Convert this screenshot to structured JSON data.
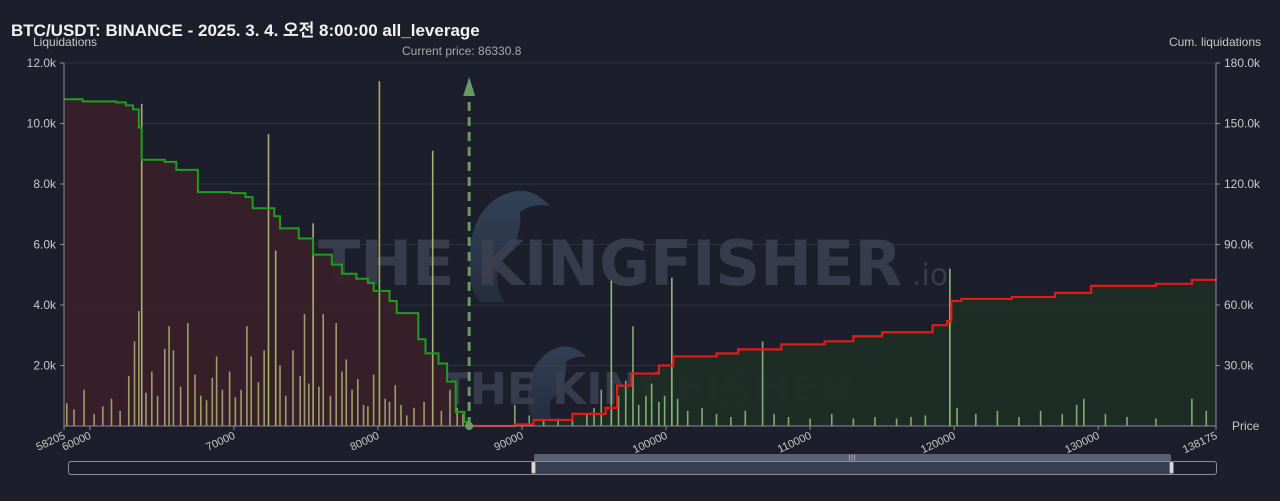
{
  "title": "BTC/USDT: BINANCE - 2025. 3. 4. 오전 8:00:00 all_leverage",
  "colors": {
    "background": "#1c1e2b",
    "short_cum_line": "#e31a1a",
    "long_cum_line": "#1f9d1f",
    "long_fill": "#3a1f28",
    "short_fill": "#1e2e26",
    "bar_long": "#b7bd7a",
    "bar_short": "#9fc98a",
    "current_price": "#6a9a63"
  },
  "watermark": {
    "text_main": "THE KINGFISHER",
    "text_suffix": ".io"
  },
  "chart_data": {
    "type": "bar",
    "title": "BTC/USDT: BINANCE - 2025. 3. 4. 오전 8:00:00 all_leverage",
    "xlabel": "Price",
    "ylabel": "Liquidations",
    "y2label": "Cum. liquidations",
    "xlim": [
      58205,
      138175
    ],
    "ylim": [
      0,
      12000
    ],
    "y2lim": [
      0,
      180000
    ],
    "x_ticks": [
      "58205",
      "60000",
      "70000",
      "80000",
      "90000",
      "100000",
      "110000",
      "120000",
      "130000",
      "138175"
    ],
    "y_ticks": [
      "2.0k",
      "4.0k",
      "6.0k",
      "8.0k",
      "10.0k",
      "12.0k"
    ],
    "y2_ticks": [
      "30.0k",
      "60.0k",
      "90.0k",
      "120.0k",
      "150.0k",
      "180.0k"
    ],
    "grid": true,
    "current_price": {
      "value": 86330.8,
      "label": "Current price: 86330.8"
    },
    "cumulative_long": [
      [
        58205,
        162000
      ],
      [
        59500,
        161000
      ],
      [
        61800,
        160500
      ],
      [
        62500,
        159000
      ],
      [
        63000,
        157000
      ],
      [
        63400,
        148000
      ],
      [
        63600,
        132000
      ],
      [
        65200,
        131000
      ],
      [
        66000,
        127000
      ],
      [
        67500,
        116000
      ],
      [
        69800,
        115500
      ],
      [
        70800,
        113500
      ],
      [
        71300,
        108000
      ],
      [
        72800,
        104000
      ],
      [
        73200,
        98000
      ],
      [
        74500,
        93000
      ],
      [
        75500,
        85000
      ],
      [
        76800,
        80000
      ],
      [
        77500,
        75500
      ],
      [
        78500,
        73000
      ],
      [
        79300,
        71000
      ],
      [
        79700,
        67000
      ],
      [
        80800,
        62000
      ],
      [
        81300,
        56000
      ],
      [
        82800,
        43000
      ],
      [
        83300,
        36000
      ],
      [
        84200,
        31000
      ],
      [
        84800,
        22000
      ],
      [
        85400,
        7000
      ],
      [
        86000,
        2000
      ],
      [
        86330,
        0
      ]
    ],
    "cumulative_short": [
      [
        86330,
        0
      ],
      [
        89500,
        800
      ],
      [
        90800,
        3000
      ],
      [
        93500,
        6000
      ],
      [
        95800,
        9000
      ],
      [
        96600,
        20000
      ],
      [
        97600,
        26000
      ],
      [
        99500,
        30000
      ],
      [
        100500,
        34500
      ],
      [
        103500,
        36000
      ],
      [
        105000,
        38000
      ],
      [
        108000,
        40500
      ],
      [
        111000,
        42000
      ],
      [
        113000,
        44500
      ],
      [
        115000,
        46500
      ],
      [
        118500,
        50000
      ],
      [
        119500,
        52000
      ],
      [
        119800,
        62000
      ],
      [
        120500,
        63000
      ],
      [
        124000,
        64000
      ],
      [
        127000,
        66000
      ],
      [
        129500,
        69500
      ],
      [
        134000,
        70500
      ],
      [
        136500,
        72500
      ],
      [
        138175,
        73000
      ]
    ],
    "liquidation_bars": [
      [
        58400,
        750
      ],
      [
        58900,
        550
      ],
      [
        59600,
        1200
      ],
      [
        60300,
        400
      ],
      [
        60900,
        650
      ],
      [
        61500,
        900
      ],
      [
        62100,
        500
      ],
      [
        62700,
        1650
      ],
      [
        63100,
        2800
      ],
      [
        63400,
        3800
      ],
      [
        63600,
        10650
      ],
      [
        63900,
        1100
      ],
      [
        64300,
        1800
      ],
      [
        64700,
        1000
      ],
      [
        65200,
        2550
      ],
      [
        65500,
        3300
      ],
      [
        65800,
        2500
      ],
      [
        66300,
        1300
      ],
      [
        66800,
        3400
      ],
      [
        67300,
        1700
      ],
      [
        67700,
        1000
      ],
      [
        68100,
        850
      ],
      [
        68500,
        1600
      ],
      [
        68800,
        2300
      ],
      [
        69200,
        1200
      ],
      [
        69700,
        1800
      ],
      [
        70100,
        950
      ],
      [
        70500,
        1200
      ],
      [
        70900,
        3300
      ],
      [
        71200,
        2300
      ],
      [
        71700,
        1450
      ],
      [
        72100,
        2500
      ],
      [
        72400,
        9650
      ],
      [
        72900,
        5800
      ],
      [
        73200,
        2000
      ],
      [
        73600,
        1000
      ],
      [
        74100,
        2500
      ],
      [
        74600,
        1650
      ],
      [
        74900,
        3700
      ],
      [
        75200,
        1400
      ],
      [
        75500,
        6700
      ],
      [
        75900,
        1300
      ],
      [
        76200,
        3700
      ],
      [
        76700,
        1000
      ],
      [
        77100,
        3400
      ],
      [
        77500,
        1800
      ],
      [
        77800,
        2200
      ],
      [
        78200,
        1200
      ],
      [
        78600,
        1550
      ],
      [
        79000,
        700
      ],
      [
        79300,
        650
      ],
      [
        79700,
        1700
      ],
      [
        80100,
        11400
      ],
      [
        80500,
        900
      ],
      [
        80800,
        800
      ],
      [
        81200,
        1350
      ],
      [
        81600,
        700
      ],
      [
        82000,
        350
      ],
      [
        82500,
        600
      ],
      [
        83200,
        800
      ],
      [
        83800,
        9100
      ],
      [
        84400,
        500
      ],
      [
        85000,
        1200
      ],
      [
        85500,
        600
      ],
      [
        85900,
        400
      ],
      [
        89500,
        700
      ],
      [
        90500,
        350
      ],
      [
        91500,
        200
      ],
      [
        92500,
        250
      ],
      [
        93500,
        300
      ],
      [
        94500,
        400
      ],
      [
        95000,
        600
      ],
      [
        95500,
        1200
      ],
      [
        96200,
        4800
      ],
      [
        96700,
        1000
      ],
      [
        97200,
        1500
      ],
      [
        97700,
        3300
      ],
      [
        98100,
        700
      ],
      [
        98600,
        1000
      ],
      [
        99000,
        1400
      ],
      [
        99500,
        800
      ],
      [
        99900,
        1000
      ],
      [
        100400,
        4900
      ],
      [
        100800,
        900
      ],
      [
        101500,
        500
      ],
      [
        102500,
        600
      ],
      [
        103500,
        400
      ],
      [
        104500,
        300
      ],
      [
        105500,
        500
      ],
      [
        106700,
        2800
      ],
      [
        107500,
        400
      ],
      [
        108500,
        300
      ],
      [
        110000,
        250
      ],
      [
        111500,
        400
      ],
      [
        113000,
        250
      ],
      [
        114500,
        300
      ],
      [
        116000,
        250
      ],
      [
        117000,
        300
      ],
      [
        118000,
        350
      ],
      [
        119700,
        5200
      ],
      [
        120200,
        600
      ],
      [
        121500,
        400
      ],
      [
        123000,
        500
      ],
      [
        124500,
        300
      ],
      [
        126000,
        500
      ],
      [
        127500,
        400
      ],
      [
        128500,
        700
      ],
      [
        129000,
        900
      ],
      [
        130500,
        400
      ],
      [
        132000,
        300
      ],
      [
        134000,
        250
      ],
      [
        136500,
        900
      ],
      [
        137500,
        500
      ]
    ],
    "zoom_range_fraction": [
      0.405,
      0.961
    ]
  }
}
